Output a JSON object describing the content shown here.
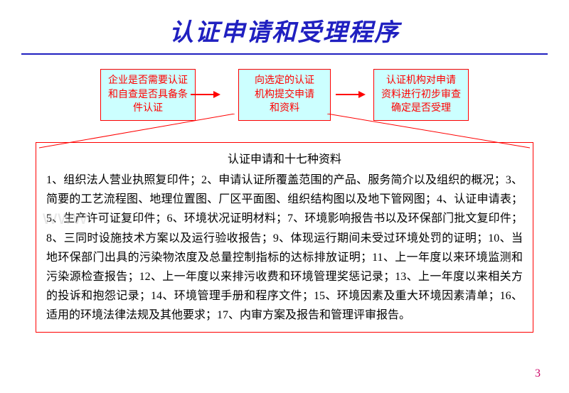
{
  "colors": {
    "title": "#2020c0",
    "underline": "#2020c0",
    "box_border": "#ff0000",
    "box_bg": "#ccffff",
    "box_text": "#ff0000",
    "arrow": "#ff0000",
    "connector": "#ff0000",
    "detail_border": "#ff0000",
    "detail_text": "#000000",
    "pagenum": "#cc0066",
    "watermark": "rgba(200,200,200,0.45)"
  },
  "title": "认证申请和受理程序",
  "boxes": [
    "企业是否需要认证\n和自查是否具备条\n件认证",
    "向选定的认证\n机构提交申请\n和资料",
    "认证机构对申请\n资料进行初步审查\n确定是否受理"
  ],
  "detail": {
    "heading": "认证申请和十七种资料",
    "body": "1、组织法人营业执照复印件；2、申请认证所覆盖范围的产品、服务简介以及组织的概况；3、简要的工艺流程图、地理位置图、厂区平面图、组织结构图以及地下管网图；4、认证申请表；5、生产许可证复印件；6、环境状况证明材料；7、环境影响报告书以及环保部门批文复印件；8、三同时设施技术方案以及运行验收报告；9、体现运行期间未受过环境处罚的证明；10、当地环保部门出具的污染物浓度及总量控制指标的达标排放证明；11、上一年度以来环境监测和污染源检查报告；12、上一年度以来排污收费和环境管理奖惩记录；13、上一年度以来相关方的投诉和抱怨记录；14、环境管理手册和程序文件；15、环境因素及重大环境因素清单；16、适用的环境法律法规及其他要求；17、内审方案及报告和管理评审报告。"
  },
  "watermark": "www",
  "page_number": "3"
}
